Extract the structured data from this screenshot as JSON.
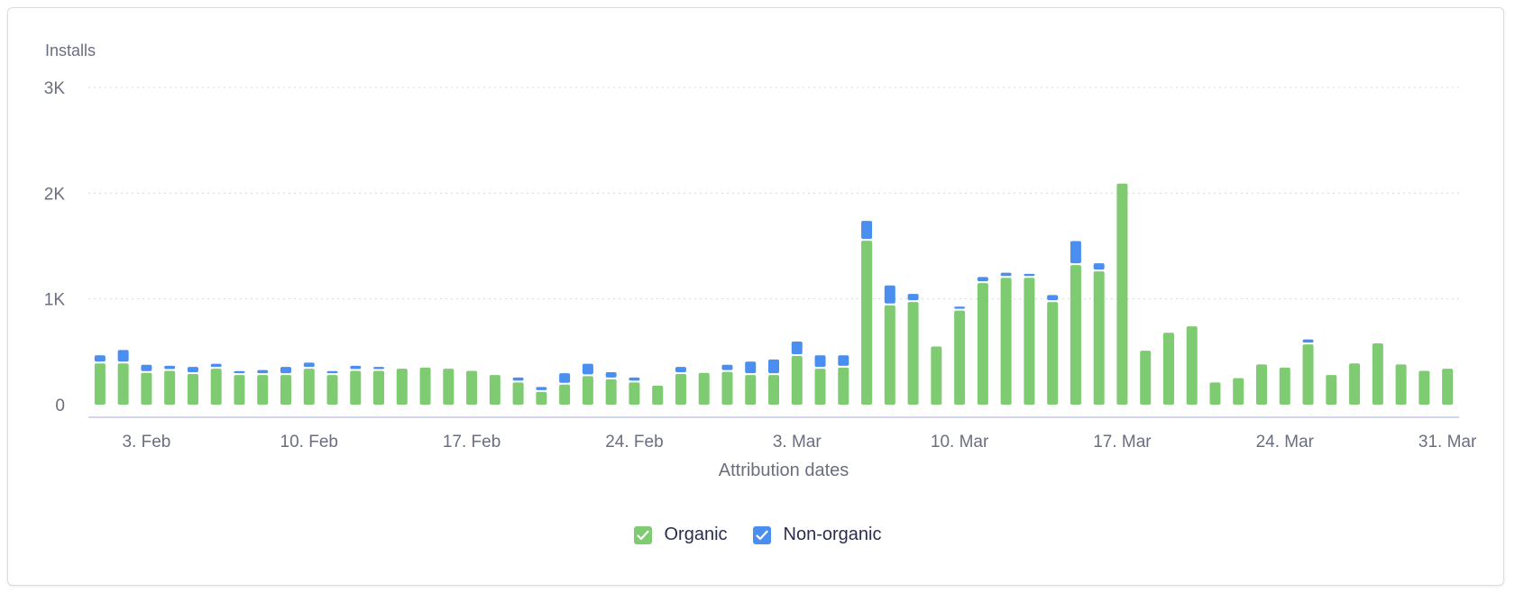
{
  "chart_data": {
    "type": "bar",
    "stacked": true,
    "ylabel": "Installs",
    "xlabel": "Attribution dates",
    "ylim": [
      0,
      3000
    ],
    "y_ticks": [
      "0",
      "1K",
      "2K",
      "3K"
    ],
    "y_tick_values": [
      0,
      1000,
      2000,
      3000
    ],
    "x_tick_labels": [
      "3. Feb",
      "10. Feb",
      "17. Feb",
      "24. Feb",
      "3. Mar",
      "10. Mar",
      "17. Mar",
      "24. Mar",
      "31. Mar"
    ],
    "x_tick_indices": [
      2,
      9,
      16,
      23,
      30,
      37,
      44,
      51,
      58
    ],
    "categories": [
      "1. Feb",
      "2. Feb",
      "3. Feb",
      "4. Feb",
      "5. Feb",
      "6. Feb",
      "7. Feb",
      "8. Feb",
      "9. Feb",
      "10. Feb",
      "11. Feb",
      "12. Feb",
      "13. Feb",
      "14. Feb",
      "15. Feb",
      "16. Feb",
      "17. Feb",
      "18. Feb",
      "19. Feb",
      "20. Feb",
      "21. Feb",
      "22. Feb",
      "23. Feb",
      "24. Feb",
      "25. Feb",
      "26. Feb",
      "27. Feb",
      "28. Feb",
      "1. Mar",
      "2. Mar",
      "3. Mar",
      "4. Mar",
      "5. Mar",
      "6. Mar",
      "7. Mar",
      "8. Mar",
      "9. Mar",
      "10. Mar",
      "11. Mar",
      "12. Mar",
      "13. Mar",
      "14. Mar",
      "15. Mar",
      "16. Mar",
      "17. Mar",
      "18. Mar",
      "19. Mar",
      "20. Mar",
      "21. Mar",
      "22. Mar",
      "23. Mar",
      "24. Mar",
      "25. Mar",
      "26. Mar",
      "27. Mar",
      "28. Mar",
      "29. Mar",
      "30. Mar",
      "31. Mar"
    ],
    "series": [
      {
        "name": "Organic",
        "color": "#7ecb71",
        "values": [
          390,
          390,
          300,
          320,
          290,
          340,
          280,
          280,
          280,
          340,
          280,
          320,
          320,
          340,
          350,
          340,
          320,
          280,
          210,
          120,
          190,
          270,
          240,
          210,
          180,
          290,
          300,
          310,
          280,
          280,
          460,
          340,
          350,
          1550,
          940,
          970,
          550,
          890,
          1150,
          1200,
          1200,
          970,
          1320,
          1260,
          2090,
          510,
          680,
          740,
          210,
          250,
          380,
          350,
          570,
          280,
          390,
          580,
          380,
          320,
          340
        ]
      },
      {
        "name": "Non-organic",
        "color": "#4a8ef0",
        "values": [
          60,
          110,
          60,
          30,
          50,
          30,
          20,
          30,
          60,
          40,
          20,
          30,
          20,
          0,
          0,
          0,
          0,
          0,
          30,
          30,
          90,
          100,
          50,
          30,
          0,
          50,
          0,
          50,
          110,
          130,
          120,
          110,
          100,
          170,
          170,
          60,
          0,
          20,
          40,
          30,
          20,
          50,
          210,
          60,
          0,
          0,
          0,
          0,
          0,
          0,
          0,
          0,
          30,
          0,
          0,
          0,
          0,
          0,
          0
        ]
      }
    ]
  }
}
